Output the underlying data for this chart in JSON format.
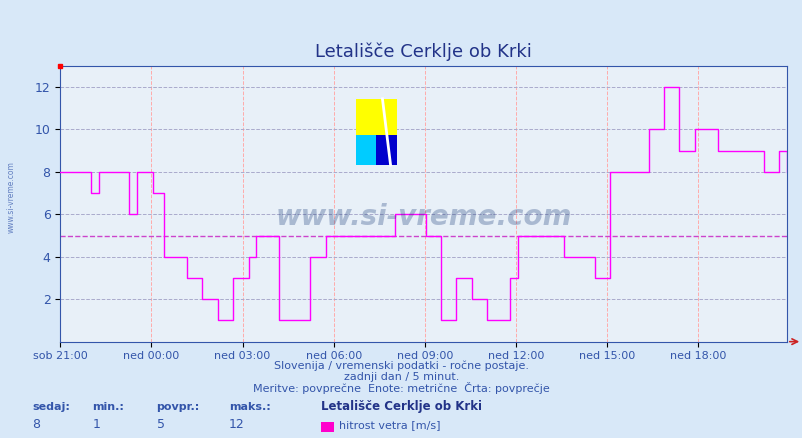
{
  "title": "Letališče Cerklje ob Krki",
  "bg_color": "#d8e8f8",
  "plot_bg_color": "#e8f0f8",
  "line_color": "#ff00ff",
  "avg_line_color": "#cc44cc",
  "xlim": [
    0,
    287
  ],
  "ylim": [
    0,
    13
  ],
  "yticks": [
    2,
    4,
    6,
    8,
    10,
    12
  ],
  "ytick_labels": [
    "2",
    "4",
    "6",
    "8",
    "10",
    "12"
  ],
  "xtick_positions": [
    0,
    36,
    72,
    108,
    144,
    180,
    216,
    252
  ],
  "xtick_labels": [
    "sob 21:00",
    "ned 00:00",
    "ned 03:00",
    "ned 06:00",
    "ned 09:00",
    "ned 12:00",
    "ned 15:00",
    "ned 18:00"
  ],
  "footer_line1": "Slovenija / vremenski podatki - ročne postaje.",
  "footer_line2": "zadnji dan / 5 minut.",
  "footer_line3": "Meritve: povprečne  Enote: metrične  Črta: povprečje",
  "legend_station": "Letališče Cerklje ob Krki",
  "legend_param": "hitrost vetra [m/s]",
  "legend_color": "#ff00cc",
  "sedaj_label": "sedaj:",
  "min_label": "min.:",
  "povpr_label": "povpr.:",
  "maks_label": "maks.:",
  "sedaj_val": "8",
  "min_val": "1",
  "povpr_val": "5",
  "maks_val": "12",
  "avg_value": 5,
  "watermark_text": "www.si-vreme.com",
  "data_y": [
    8,
    8,
    8,
    8,
    8,
    8,
    8,
    8,
    7,
    7,
    8,
    8,
    8,
    8,
    8,
    8,
    8,
    8,
    6,
    6,
    8,
    8,
    8,
    8,
    7,
    7,
    7,
    4,
    4,
    4,
    4,
    4,
    4,
    3,
    3,
    3,
    3,
    2,
    2,
    2,
    2,
    1,
    1,
    1,
    1,
    3,
    3,
    3,
    3,
    4,
    4,
    5,
    5,
    5,
    5,
    5,
    5,
    1,
    1,
    1,
    1,
    1,
    1,
    1,
    1,
    4,
    4,
    4,
    4,
    5,
    5,
    5,
    5,
    5,
    5,
    5,
    5,
    5,
    5,
    5,
    5,
    5,
    5,
    5,
    5,
    5,
    5,
    6,
    6,
    6,
    6,
    6,
    6,
    6,
    6,
    5,
    5,
    5,
    5,
    1,
    1,
    1,
    1,
    3,
    3,
    3,
    3,
    2,
    2,
    2,
    2,
    1,
    1,
    1,
    1,
    1,
    1,
    3,
    3,
    5,
    5,
    5,
    5,
    5,
    5,
    5,
    5,
    5,
    5,
    5,
    5,
    4,
    4,
    4,
    4,
    4,
    4,
    4,
    4,
    3,
    3,
    3,
    3,
    8,
    8,
    8,
    8,
    8,
    8,
    8,
    8,
    8,
    8,
    10,
    10,
    10,
    10,
    12,
    12,
    12,
    12,
    9,
    9,
    9,
    9,
    10,
    10,
    10,
    10,
    10,
    10,
    9,
    9,
    9,
    9,
    9,
    9,
    9,
    9,
    9,
    9,
    9,
    9,
    8,
    8,
    8,
    8,
    9,
    9,
    8
  ]
}
